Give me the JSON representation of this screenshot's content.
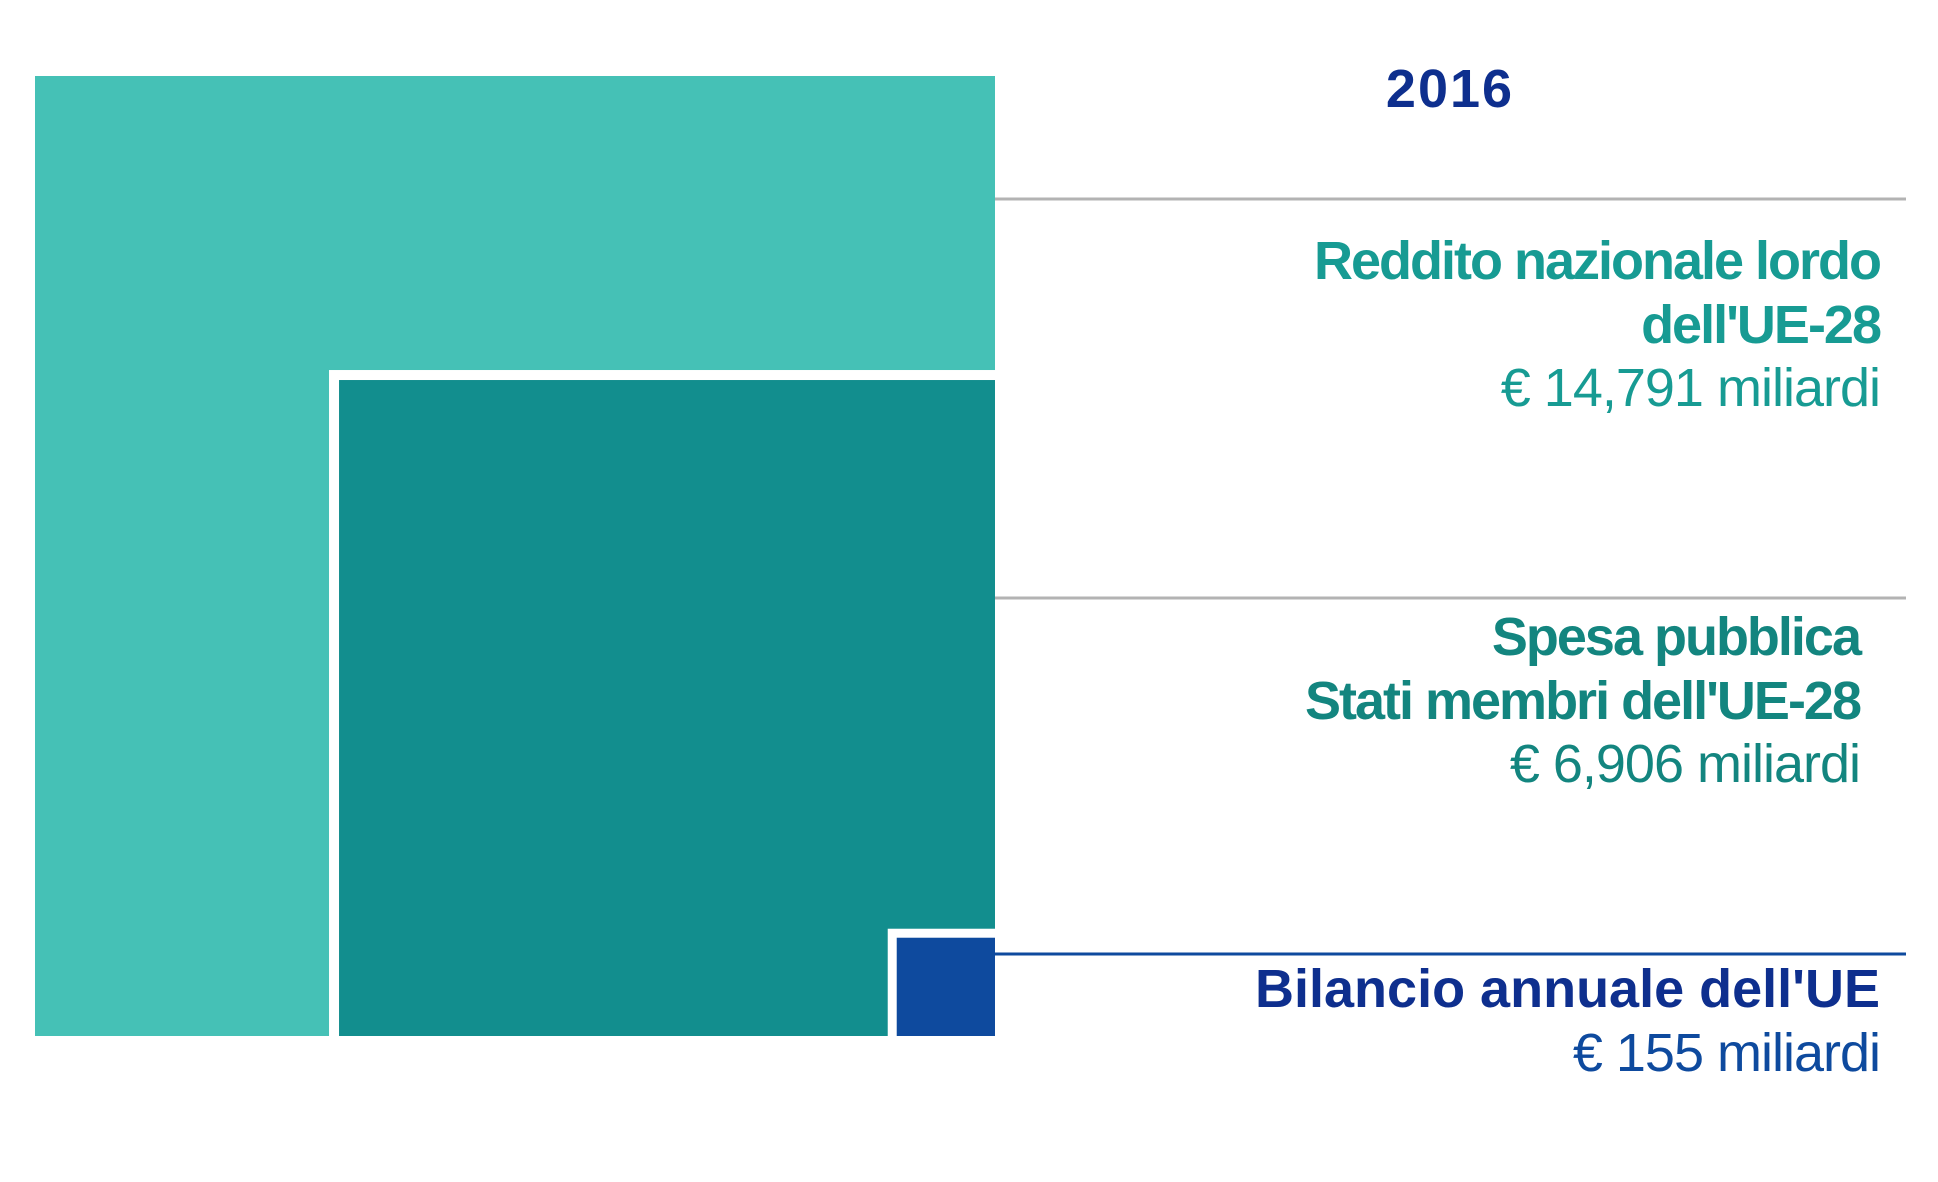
{
  "chart_data": {
    "type": "nested-squares",
    "year": "2016",
    "series": [
      {
        "key": "gni",
        "title_lines": [
          "Reddito nazionale lordo",
          "dell'UE-28"
        ],
        "value_label": "€ 14,791 miliardi",
        "value": 14791,
        "unit": "miliardi €"
      },
      {
        "key": "spending",
        "title_lines": [
          "Spesa pubblica",
          "Stati membri dell'UE-28"
        ],
        "value_label": "€ 6,906 miliardi",
        "value": 6906,
        "unit": "miliardi €"
      },
      {
        "key": "budget",
        "title_lines": [
          "Bilancio annuale dell'UE"
        ],
        "value_label": "€ 155 miliardi",
        "value": 155,
        "unit": "miliardi €"
      }
    ],
    "colors": {
      "gni": "#45c1b6",
      "spending": "#128e8e",
      "budget": "#0e4a9e",
      "year_text": "#0e2f8e",
      "gni_text": "#179b93",
      "spending_text": "#13857f",
      "budget_title_text": "#0e2f8e",
      "budget_value_text": "#0e4a9e",
      "separator": "#b3b3b3",
      "budget_separator": "#0e4a9e"
    }
  }
}
